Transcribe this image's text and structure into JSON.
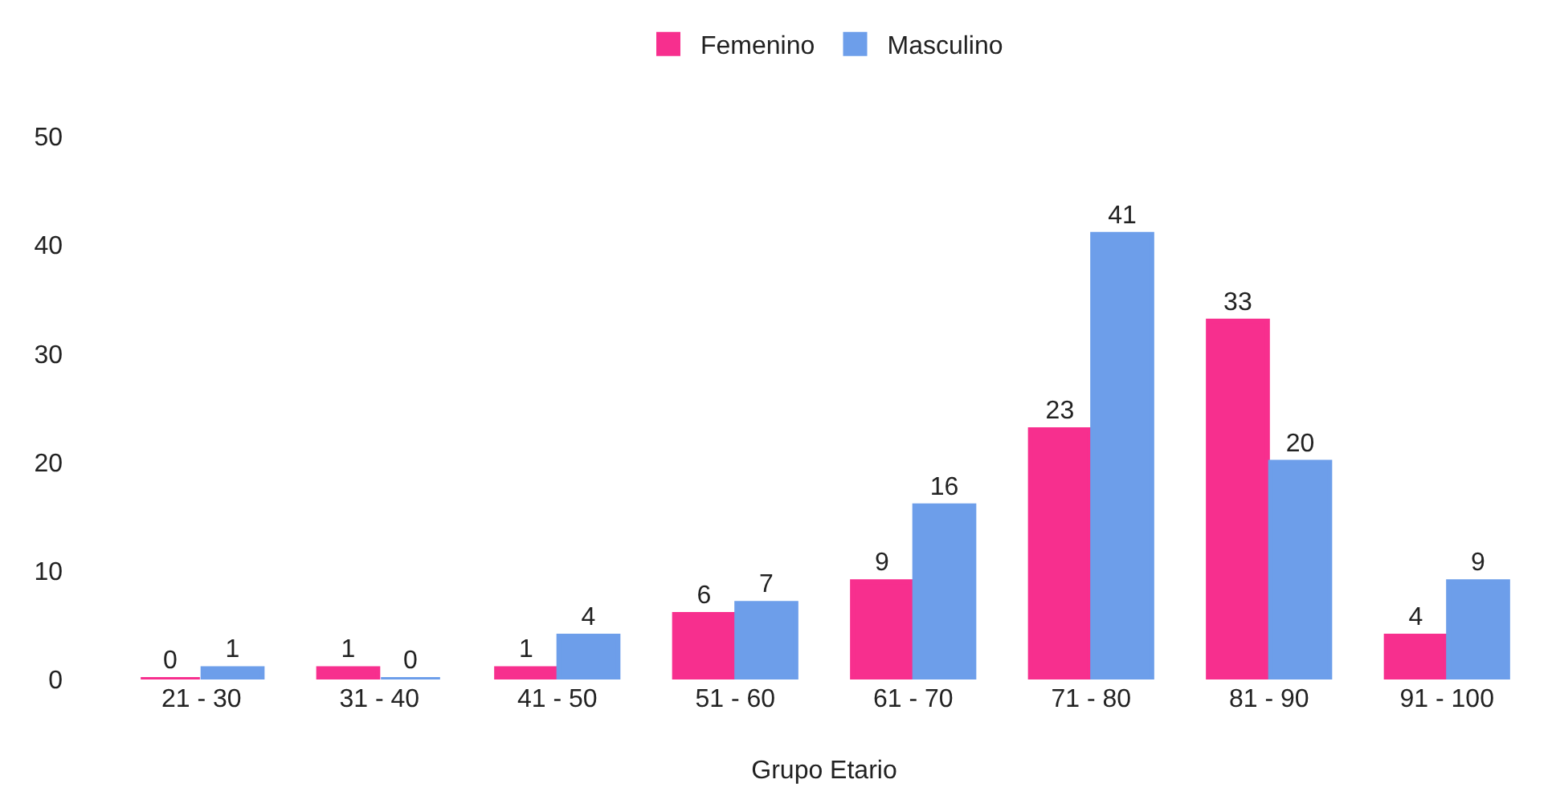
{
  "chart_data": {
    "type": "bar",
    "xlabel": "Grupo Etario",
    "categories": [
      "21 - 30",
      "31 - 40",
      "41 - 50",
      "51 - 60",
      "61 - 70",
      "71 - 80",
      "81 - 90",
      "91 - 100"
    ],
    "series": [
      {
        "name": "Femenino",
        "color": "#f72f8e",
        "values": [
          0,
          1,
          1,
          6,
          9,
          23,
          33,
          4
        ]
      },
      {
        "name": "Masculino",
        "color": "#6d9eea",
        "values": [
          1,
          0,
          4,
          7,
          16,
          41,
          20,
          9
        ]
      }
    ],
    "ylim": [
      0,
      50
    ],
    "yticks": [
      0,
      10,
      20,
      30,
      40,
      50
    ],
    "grid": false,
    "legend": "top",
    "data_labels": true
  }
}
